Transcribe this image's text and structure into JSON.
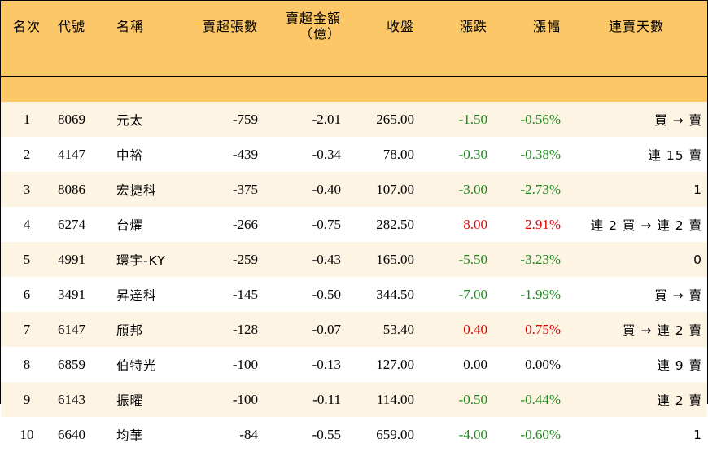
{
  "headers": {
    "rank": "名次",
    "code": "代號",
    "name": "名稱",
    "net_sell_lots": "賣超張數",
    "net_sell_amount_line1": "賣超金額",
    "net_sell_amount_line2": "（億）",
    "close": "收盤",
    "change": "漲跌",
    "change_pct": "漲幅",
    "streak": "連賣天數"
  },
  "rows": [
    {
      "rank": "1",
      "code": "8069",
      "name": "元太",
      "lots": "-759",
      "amount": "-2.01",
      "close": "265.00",
      "change": "-1.50",
      "pct": "-0.56%",
      "streak": "買 → 賣",
      "dir": "down"
    },
    {
      "rank": "2",
      "code": "4147",
      "name": "中裕",
      "lots": "-439",
      "amount": "-0.34",
      "close": "78.00",
      "change": "-0.30",
      "pct": "-0.38%",
      "streak": "連 15 賣",
      "dir": "down"
    },
    {
      "rank": "3",
      "code": "8086",
      "name": "宏捷科",
      "lots": "-375",
      "amount": "-0.40",
      "close": "107.00",
      "change": "-3.00",
      "pct": "-2.73%",
      "streak": "1",
      "dir": "down"
    },
    {
      "rank": "4",
      "code": "6274",
      "name": "台燿",
      "lots": "-266",
      "amount": "-0.75",
      "close": "282.50",
      "change": "8.00",
      "pct": "2.91%",
      "streak": "連 2 買 → 連 2 賣",
      "dir": "up"
    },
    {
      "rank": "5",
      "code": "4991",
      "name": "環宇-KY",
      "lots": "-259",
      "amount": "-0.43",
      "close": "165.00",
      "change": "-5.50",
      "pct": "-3.23%",
      "streak": "0",
      "dir": "down"
    },
    {
      "rank": "6",
      "code": "3491",
      "name": "昇達科",
      "lots": "-145",
      "amount": "-0.50",
      "close": "344.50",
      "change": "-7.00",
      "pct": "-1.99%",
      "streak": "買 → 賣",
      "dir": "down"
    },
    {
      "rank": "7",
      "code": "6147",
      "name": "頎邦",
      "lots": "-128",
      "amount": "-0.07",
      "close": "53.40",
      "change": "0.40",
      "pct": "0.75%",
      "streak": "買 → 連 2 賣",
      "dir": "up"
    },
    {
      "rank": "8",
      "code": "6859",
      "name": "伯特光",
      "lots": "-100",
      "amount": "-0.13",
      "close": "127.00",
      "change": "0.00",
      "pct": "0.00%",
      "streak": "連 9 賣",
      "dir": "flat"
    },
    {
      "rank": "9",
      "code": "6143",
      "name": "振曜",
      "lots": "-100",
      "amount": "-0.11",
      "close": "114.00",
      "change": "-0.50",
      "pct": "-0.44%",
      "streak": "連 2 賣",
      "dir": "down"
    },
    {
      "rank": "10",
      "code": "6640",
      "name": "均華",
      "lots": "-84",
      "amount": "-0.55",
      "close": "659.00",
      "change": "-4.00",
      "pct": "-0.60%",
      "streak": "1",
      "dir": "down"
    }
  ],
  "colors": {
    "header_bg": "#fbc767",
    "odd_row_bg": "#fdf4e3",
    "up": "#e30000",
    "down": "#1a8a1a"
  }
}
